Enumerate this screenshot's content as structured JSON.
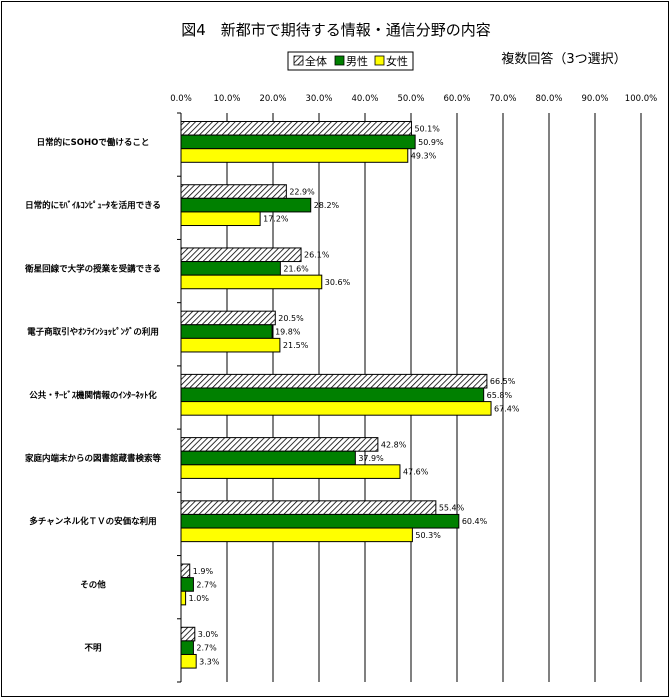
{
  "chart_data": {
    "type": "bar",
    "orientation": "horizontal",
    "title": "図4　新都市で期待する情報・通信分野の内容",
    "subtitle": "複数回答（3つ選択）",
    "categories": [
      "日常的にSOHOで働けること",
      "日常的にﾓﾊﾞｲﾙｺﾝﾋﾟｭｰﾀを活用できる",
      "衛星回線で大学の授業を受講できる",
      "電子商取引やｵﾝﾗｲﾝｼｮｯﾋﾟﾝｸﾞの利用",
      "公共・ｻｰﾋﾞｽ機関情報のｲﾝﾀｰﾈｯﾄ化",
      "家庭内端末からの図書館蔵書検索等",
      "多チャンネル化ＴＶの安価な利用",
      "その他",
      "不明"
    ],
    "series": [
      {
        "name": "全体",
        "color": "#ffffff",
        "pattern": "diagonal-hatch",
        "values": [
          50.1,
          22.9,
          26.1,
          20.5,
          66.5,
          42.8,
          55.4,
          1.9,
          3.0
        ]
      },
      {
        "name": "男性",
        "color": "#008000",
        "pattern": "solid",
        "values": [
          50.9,
          28.2,
          21.6,
          19.8,
          65.8,
          37.9,
          60.4,
          2.7,
          2.7
        ]
      },
      {
        "name": "女性",
        "color": "#ffff00",
        "pattern": "solid",
        "values": [
          49.3,
          17.2,
          30.6,
          21.5,
          67.4,
          47.6,
          50.3,
          1.0,
          3.3
        ]
      }
    ],
    "value_labels": [
      [
        "50.1%",
        "22.9%",
        "26.1%",
        "20.5%",
        "66.5%",
        "42.8%",
        "55.4%",
        "1.9%",
        "3.0%"
      ],
      [
        "50.9%",
        "28.2%",
        "21.6%",
        "19.8%",
        "65.8%",
        "37.9%",
        "60.4%",
        "2.7%",
        "2.7%"
      ],
      [
        "49.3%",
        "17.2%",
        "30.6%",
        "21.5%",
        "67.4%",
        "47.6%",
        "50.3%",
        "1.0%",
        "3.3%"
      ]
    ],
    "xlim": [
      0,
      100
    ],
    "xticks": [
      "0.0%",
      "10.0%",
      "20.0%",
      "30.0%",
      "40.0%",
      "50.0%",
      "60.0%",
      "70.0%",
      "80.0%",
      "90.0%",
      "100.0%"
    ],
    "grid": true,
    "legend": "top-center"
  }
}
